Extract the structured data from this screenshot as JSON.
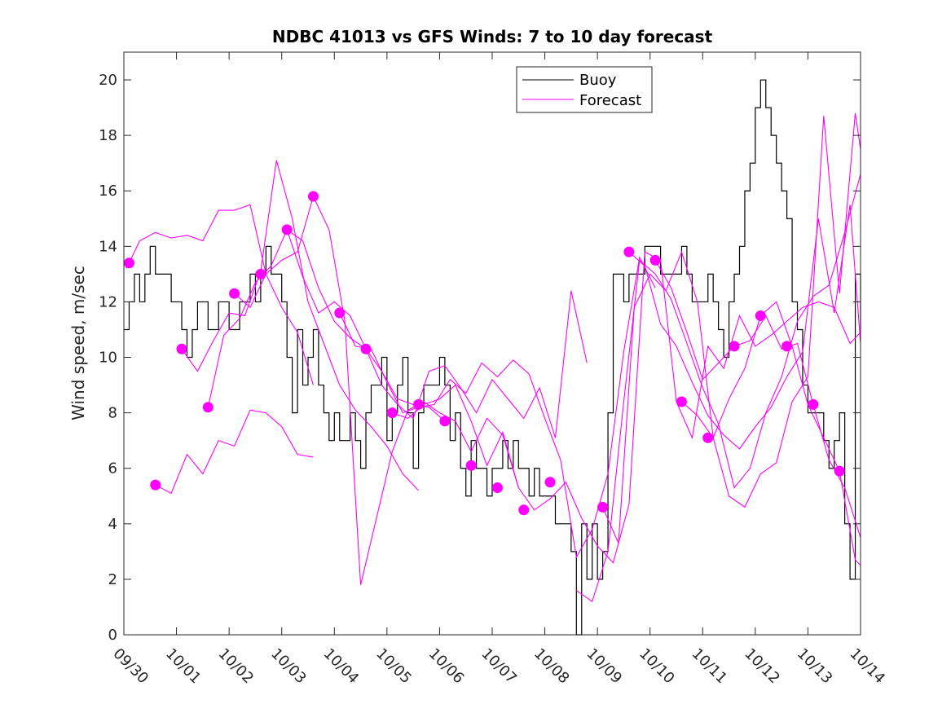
{
  "chart_data": {
    "type": "line",
    "title": "NDBC 41013 vs GFS Winds: 7 to 10 day forecast",
    "xlabel": "",
    "ylabel": "Wind speed, m/sec",
    "xlim": [
      0,
      14
    ],
    "ylim": [
      0,
      21
    ],
    "grid": false,
    "legend_position": "top-center",
    "x_ticks": [
      0,
      1,
      2,
      3,
      4,
      5,
      6,
      7,
      8,
      9,
      10,
      11,
      12,
      13,
      14
    ],
    "x_tick_labels": [
      "09/30",
      "10/01",
      "10/02",
      "10/03",
      "10/04",
      "10/05",
      "10/06",
      "10/07",
      "10/08",
      "10/09",
      "10/10",
      "10/11",
      "10/12",
      "10/13",
      "10/14"
    ],
    "y_ticks": [
      0,
      2,
      4,
      6,
      8,
      10,
      12,
      14,
      16,
      18,
      20
    ],
    "y_tick_labels": [
      "0",
      "2",
      "4",
      "6",
      "8",
      "10",
      "12",
      "14",
      "16",
      "18",
      "20"
    ],
    "colors": {
      "buoy": "#000000",
      "forecast": "#ff00ff"
    },
    "series": [
      {
        "name": "Buoy",
        "x": [
          0,
          0.1,
          0.2,
          0.3,
          0.4,
          0.5,
          0.6,
          0.7,
          0.8,
          0.9,
          1.0,
          1.1,
          1.2,
          1.3,
          1.4,
          1.5,
          1.6,
          1.7,
          1.8,
          1.9,
          2.0,
          2.1,
          2.2,
          2.3,
          2.4,
          2.5,
          2.6,
          2.7,
          2.8,
          2.9,
          3.0,
          3.1,
          3.2,
          3.3,
          3.4,
          3.5,
          3.6,
          3.7,
          3.8,
          3.9,
          4.0,
          4.1,
          4.2,
          4.3,
          4.4,
          4.5,
          4.6,
          4.7,
          4.8,
          4.9,
          5.0,
          5.1,
          5.2,
          5.3,
          5.4,
          5.5,
          5.6,
          5.7,
          5.8,
          5.9,
          6.0,
          6.1,
          6.2,
          6.3,
          6.4,
          6.5,
          6.6,
          6.7,
          6.8,
          6.9,
          7.0,
          7.1,
          7.2,
          7.3,
          7.4,
          7.5,
          7.6,
          7.7,
          7.8,
          7.9,
          8.0,
          8.1,
          8.2,
          8.3,
          8.4,
          8.5,
          8.6,
          8.7,
          8.8,
          8.9,
          9.0,
          9.1,
          9.2,
          9.3,
          9.4,
          9.5,
          9.6,
          9.7,
          9.8,
          9.9,
          10.0,
          10.1,
          10.2,
          10.3,
          10.4,
          10.5,
          10.6,
          10.7,
          10.8,
          10.9,
          11.0,
          11.1,
          11.2,
          11.3,
          11.4,
          11.5,
          11.6,
          11.7,
          11.8,
          11.9,
          12.0,
          12.1,
          12.2,
          12.3,
          12.4,
          12.5,
          12.6,
          12.7,
          12.8,
          12.9,
          13.0,
          13.1,
          13.2,
          13.3,
          13.4,
          13.5,
          13.6,
          13.7,
          13.8,
          13.9,
          14.0
        ],
        "values": [
          11,
          12,
          13,
          12,
          13,
          14,
          13,
          13,
          13,
          12,
          12,
          11,
          10,
          11,
          12,
          12,
          11,
          11,
          12,
          12,
          11,
          11,
          12,
          12,
          13,
          12,
          13,
          14,
          13,
          13,
          12,
          10,
          8,
          11,
          9,
          10,
          11,
          9,
          8,
          7,
          8,
          7,
          7,
          8,
          7,
          6,
          8,
          9,
          9,
          10,
          7,
          8,
          9,
          10,
          8,
          6,
          8,
          9,
          9,
          9,
          10,
          9,
          7,
          8,
          6,
          5,
          7,
          6,
          6,
          5,
          6,
          6,
          7,
          6,
          7,
          6,
          6,
          5,
          6,
          5,
          5,
          5,
          4,
          4,
          4,
          3,
          0,
          4,
          2,
          4,
          2,
          3,
          8,
          13,
          13,
          12,
          13,
          13,
          13,
          14,
          14,
          14,
          13,
          13,
          13,
          13,
          14,
          13,
          12,
          12,
          12,
          13,
          12,
          11,
          10,
          12,
          13,
          14,
          16,
          17,
          19,
          20,
          19,
          18,
          17,
          16,
          15,
          12,
          11,
          9,
          8,
          8,
          8,
          7,
          6,
          7,
          8,
          4,
          2,
          13,
          11
        ]
      },
      {
        "name": "Forecast",
        "points_x": [
          0.1,
          0.6,
          1.1,
          1.6,
          2.1,
          2.6,
          3.1,
          3.6,
          4.1,
          4.6,
          5.1,
          5.6,
          6.1,
          6.6,
          7.1,
          7.6,
          8.1,
          8.6,
          9.1,
          9.6,
          10.1,
          10.6,
          11.1,
          11.6,
          12.1,
          12.6,
          13.1,
          13.6
        ],
        "points_y": [
          13.4,
          5.4,
          10.3,
          8.2,
          12.3,
          13.0,
          14.6,
          15.8,
          11.6,
          10.3,
          8.0,
          8.3,
          7.7,
          6.1,
          5.3,
          4.5,
          5.5,
          null,
          4.6,
          13.8,
          13.5,
          8.4,
          7.1,
          10.4,
          11.5,
          10.4,
          8.3,
          5.9
        ],
        "traces": [
          {
            "x": [
              0.05,
              0.3,
              0.6,
              0.9,
              1.2,
              1.5,
              1.8,
              2.1,
              2.4,
              2.7,
              3.0,
              3.3,
              3.6
            ],
            "y": [
              13.2,
              14.2,
              14.5,
              14.3,
              14.4,
              14.2,
              15.3,
              15.3,
              15.5,
              13.0,
              11.8,
              10.9,
              9.0
            ]
          },
          {
            "x": [
              0.6,
              0.9,
              1.2,
              1.5,
              1.8,
              2.1,
              2.4,
              2.7,
              3.0,
              3.3,
              3.6
            ],
            "y": [
              5.4,
              5.1,
              6.5,
              5.8,
              7.0,
              6.8,
              8.1,
              8.0,
              7.5,
              6.5,
              6.4
            ]
          },
          {
            "x": [
              1.1,
              1.4,
              1.7,
              2.0,
              2.3,
              2.6,
              2.9,
              3.2,
              3.5,
              3.8,
              4.1,
              4.4,
              4.7,
              5.0,
              5.3,
              5.6
            ],
            "y": [
              10.3,
              9.5,
              10.6,
              11.6,
              11.5,
              13.1,
              17.1,
              15.0,
              12.0,
              10.5,
              9.0,
              8.1,
              7.5,
              6.8,
              5.8,
              5.2
            ]
          },
          {
            "x": [
              1.6,
              1.9,
              2.2,
              2.5,
              2.8,
              3.1,
              3.4,
              3.7,
              4.0,
              4.3,
              4.6,
              4.9,
              5.2,
              5.5,
              5.8,
              6.1
            ],
            "y": [
              8.2,
              10.8,
              11.4,
              12.7,
              13.3,
              14.6,
              14.2,
              12.5,
              11.3,
              10.7,
              10.3,
              9.5,
              8.5,
              8.3,
              8.2,
              7.7
            ]
          },
          {
            "x": [
              2.1,
              2.4,
              2.7,
              3.0,
              3.3,
              3.6,
              3.9,
              4.2,
              4.5,
              4.8,
              5.1,
              5.4,
              5.7,
              6.0,
              6.3,
              6.6,
              6.9,
              7.2,
              7.5
            ],
            "y": [
              12.3,
              11.8,
              13.0,
              13.5,
              13.8,
              15.8,
              14.6,
              11.3,
              1.8,
              4.2,
              6.6,
              8.1,
              8.4,
              8.0,
              7.7,
              6.6,
              7.8,
              7.2,
              5.3
            ]
          },
          {
            "x": [
              3.1,
              3.4,
              3.7,
              4.0,
              4.3,
              4.6,
              4.9,
              5.2,
              5.5,
              5.8,
              6.1,
              6.4,
              6.7,
              7.0,
              7.3,
              7.6,
              7.9,
              8.2,
              8.5,
              8.8
            ],
            "y": [
              14.6,
              12.9,
              11.6,
              12.0,
              11.5,
              10.3,
              9.0,
              8.3,
              7.8,
              9.5,
              9.7,
              8.9,
              8.0,
              9.2,
              8.5,
              7.8,
              8.9,
              7.1,
              12.4,
              9.8
            ]
          },
          {
            "x": [
              4.1,
              4.4,
              4.7,
              5.0,
              5.3,
              5.6,
              5.9,
              6.2,
              6.5,
              6.8,
              7.1,
              7.4,
              7.7,
              8.0,
              8.3,
              8.6,
              8.9,
              9.2,
              9.5,
              9.8,
              10.1
            ],
            "y": [
              11.6,
              10.4,
              10.3,
              9.1,
              8.0,
              8.2,
              8.3,
              9.2,
              8.7,
              9.8,
              9.3,
              9.9,
              9.4,
              7.8,
              6.3,
              2.8,
              3.8,
              5.8,
              10.2,
              13.6,
              12.5
            ]
          },
          {
            "x": [
              5.1,
              5.4,
              5.7,
              6.0,
              6.3,
              6.6,
              6.9,
              7.2,
              7.5,
              7.8,
              8.1,
              8.4,
              8.7,
              9.0,
              9.3,
              9.6,
              9.9,
              10.2,
              10.5,
              10.8,
              11.1,
              11.4,
              11.7,
              12.0,
              12.3,
              12.6,
              12.9,
              13.2,
              13.5,
              13.8,
              14.0
            ],
            "y": [
              8.0,
              7.8,
              8.3,
              8.5,
              9.0,
              7.7,
              6.1,
              7.3,
              5.3,
              4.5,
              4.9,
              5.5,
              4.2,
              3.2,
              2.6,
              4.7,
              13.8,
              13.5,
              8.4,
              7.1,
              10.4,
              9.6,
              11.5,
              10.4,
              10.8,
              11.3,
              11.8,
              12.0,
              11.8,
              10.5,
              10.9
            ]
          },
          {
            "x": [
              8.6,
              8.9,
              9.2,
              9.5,
              9.8,
              10.1,
              10.4,
              10.7,
              11.0,
              11.3,
              11.6,
              11.9,
              12.2,
              12.5,
              12.8,
              13.1,
              13.4,
              13.7,
              14.0
            ],
            "y": [
              1.6,
              1.2,
              3.0,
              8.4,
              13.5,
              13.0,
              12.1,
              10.5,
              8.9,
              7.6,
              5.3,
              6.0,
              8.0,
              9.3,
              11.3,
              12.2,
              12.6,
              14.5,
              16.6
            ]
          },
          {
            "x": [
              9.1,
              9.4,
              9.7,
              10.0,
              10.3,
              10.6,
              10.9,
              11.2,
              11.5,
              11.8,
              12.1,
              12.4,
              12.7,
              13.0,
              13.3,
              13.6,
              13.9,
              14.0
            ],
            "y": [
              4.6,
              3.3,
              11.8,
              13.0,
              12.4,
              13.8,
              12.0,
              7.1,
              5.0,
              4.6,
              5.8,
              6.2,
              8.4,
              9.3,
              18.7,
              12.3,
              18.8,
              17.5
            ]
          },
          {
            "x": [
              9.6,
              9.9,
              10.2,
              10.5,
              10.8,
              11.1,
              11.4,
              11.7,
              12.0,
              12.3,
              12.6,
              12.9,
              13.2,
              13.5,
              13.8,
              14.0
            ],
            "y": [
              13.8,
              13.3,
              11.2,
              10.4,
              9.1,
              7.9,
              7.2,
              6.7,
              7.5,
              8.2,
              9.3,
              10.2,
              15.0,
              11.6,
              15.5,
              10.5
            ]
          },
          {
            "x": [
              10.1,
              10.4,
              10.7,
              11.0,
              11.3,
              11.6,
              11.9,
              12.2,
              12.5,
              12.8,
              13.1,
              13.4,
              13.7,
              14.0
            ],
            "y": [
              13.5,
              12.5,
              10.9,
              9.2,
              9.8,
              10.4,
              10.6,
              11.5,
              10.3,
              10.5,
              8.3,
              6.3,
              5.3,
              3.5
            ]
          },
          {
            "x": [
              10.6,
              10.9,
              11.2,
              11.5,
              11.8,
              12.1,
              12.4,
              12.7,
              13.0,
              13.3,
              13.6,
              13.9,
              14.0
            ],
            "y": [
              8.4,
              7.9,
              7.1,
              8.5,
              9.6,
              11.5,
              12.0,
              10.4,
              8.3,
              7.1,
              5.9,
              2.7,
              2.5
            ]
          }
        ]
      }
    ],
    "legend": [
      "Buoy",
      "Forecast"
    ]
  }
}
